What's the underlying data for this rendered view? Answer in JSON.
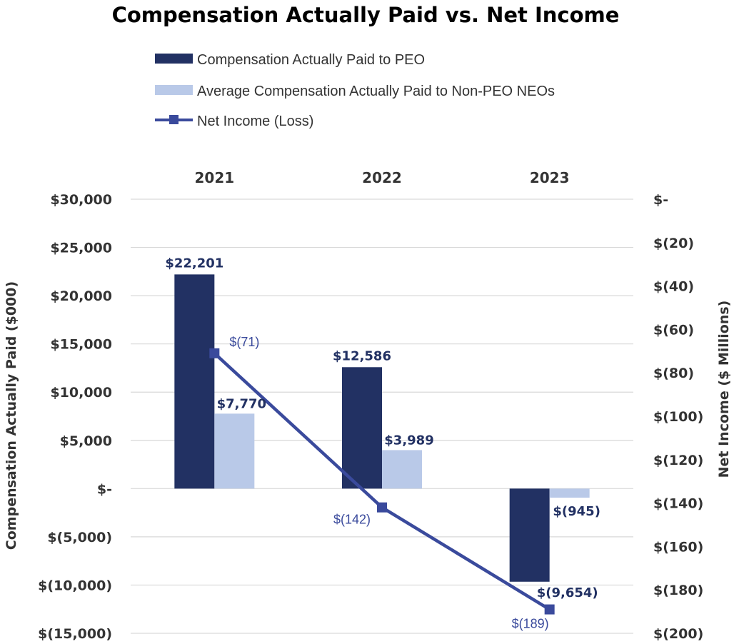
{
  "chart_data": {
    "type": "bar",
    "title": "Compensation Actually Paid vs. Net Income",
    "categories": [
      "2021",
      "2022",
      "2023"
    ],
    "ylabel": "Compensation Actually Paid ($000)",
    "y2label": "Net Income ($ Millions)",
    "ylim": [
      -15000,
      30000
    ],
    "y2lim": [
      -200,
      0
    ],
    "yticks": [
      30000,
      25000,
      20000,
      15000,
      10000,
      5000,
      0,
      -5000,
      -10000,
      -15000
    ],
    "ytick_labels": [
      "$30,000",
      "$25,000",
      "$20,000",
      "$15,000",
      "$10,000",
      "$5,000",
      "$-",
      "$(5,000)",
      "$(10,000)",
      "$(15,000)"
    ],
    "y2ticks": [
      0,
      -20,
      -40,
      -60,
      -80,
      -100,
      -120,
      -140,
      -160,
      -180,
      -200
    ],
    "y2tick_labels": [
      "$-",
      "$(20)",
      "$(40)",
      "$(60)",
      "$(80)",
      "$(100)",
      "$(120)",
      "$(140)",
      "$(160)",
      "$(180)",
      "$(200)"
    ],
    "grid": true,
    "legend_position": "top",
    "series": [
      {
        "name": "Compensation Actually Paid to PEO",
        "type": "bar",
        "axis": "left",
        "color": "#223163",
        "values": [
          22201,
          12586,
          -9654
        ],
        "labels": [
          "$22,201",
          "$12,586",
          "$(9,654)"
        ]
      },
      {
        "name": "Average Compensation Actually Paid to Non-PEO NEOs",
        "type": "bar",
        "axis": "left",
        "color": "#b9c9e8",
        "values": [
          7770,
          3989,
          -945
        ],
        "labels": [
          "$7,770",
          "$3,989",
          "$(945)"
        ]
      },
      {
        "name": "Net Income (Loss)",
        "type": "line",
        "axis": "right",
        "color": "#3a4a9c",
        "values": [
          -71,
          -142,
          -189
        ],
        "labels": [
          "$(71)",
          "$(142)",
          "$(189)"
        ]
      }
    ]
  }
}
